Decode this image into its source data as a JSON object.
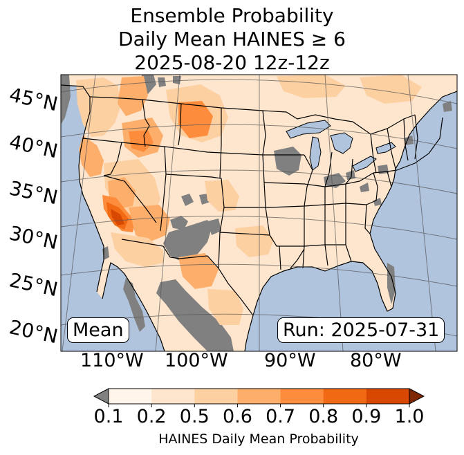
{
  "title": {
    "line1": "Ensemble Probability",
    "line2": "Daily Mean HAINES ≥ 6",
    "line3": "2025-08-20 12z-12z"
  },
  "map": {
    "lat_labels": [
      "45°N",
      "40°N",
      "35°N",
      "30°N",
      "25°N",
      "20°N"
    ],
    "lon_labels": [
      "110°W",
      "100°W",
      "90°W",
      "80°W"
    ],
    "stat_label": "Mean",
    "run_label": "Run: 2025-07-31",
    "colors": {
      "ocean": "#b0c4de",
      "lakes": "#b0c4de",
      "missing": "#808080",
      "p0_1": "#fff5eb",
      "p0_2": "#fee6ce",
      "p0_5": "#fdd0a2",
      "p0_6": "#fdae6b",
      "p0_7": "#fd8d3c",
      "p0_8": "#f16913",
      "p0_9": "#d94801",
      "over": "#7f2704",
      "under": "#808080"
    }
  },
  "colorbar": {
    "ticks": [
      "0.1",
      "0.2",
      "0.5",
      "0.6",
      "0.7",
      "0.8",
      "0.9",
      "1.0"
    ],
    "label": "HAINES Daily Mean Probability",
    "bins": [
      "#fff5eb",
      "#fee6ce",
      "#fdd0a2",
      "#fdae6b",
      "#fd8d3c",
      "#f16913",
      "#d94801"
    ],
    "under_color": "#808080",
    "over_color": "#7f2704"
  }
}
